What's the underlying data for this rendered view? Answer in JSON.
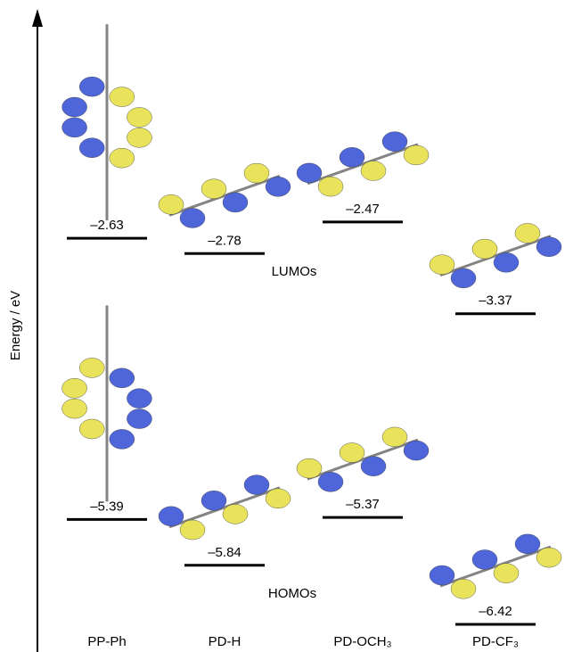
{
  "chart_data": {
    "type": "level",
    "y_label": "Energy / eV",
    "categories": [
      "PP-Ph",
      "PD-H",
      "PD-OCH₃",
      "PD-CF₃"
    ],
    "series": [
      {
        "name": "LUMOs",
        "color": "#000000",
        "values": [
          -2.63,
          -2.78,
          -2.47,
          -3.37
        ],
        "value_labels": [
          "–2.63",
          "–2.78",
          "–2.47",
          "–3.37"
        ]
      },
      {
        "name": "HOMOs",
        "color": "#000000",
        "values": [
          -5.39,
          -5.84,
          -5.37,
          -6.42
        ],
        "value_labels": [
          "–5.39",
          "–5.84",
          "–5.37",
          "–6.42"
        ]
      }
    ],
    "ylim": [
      -6.6,
      -1.0
    ]
  }
}
